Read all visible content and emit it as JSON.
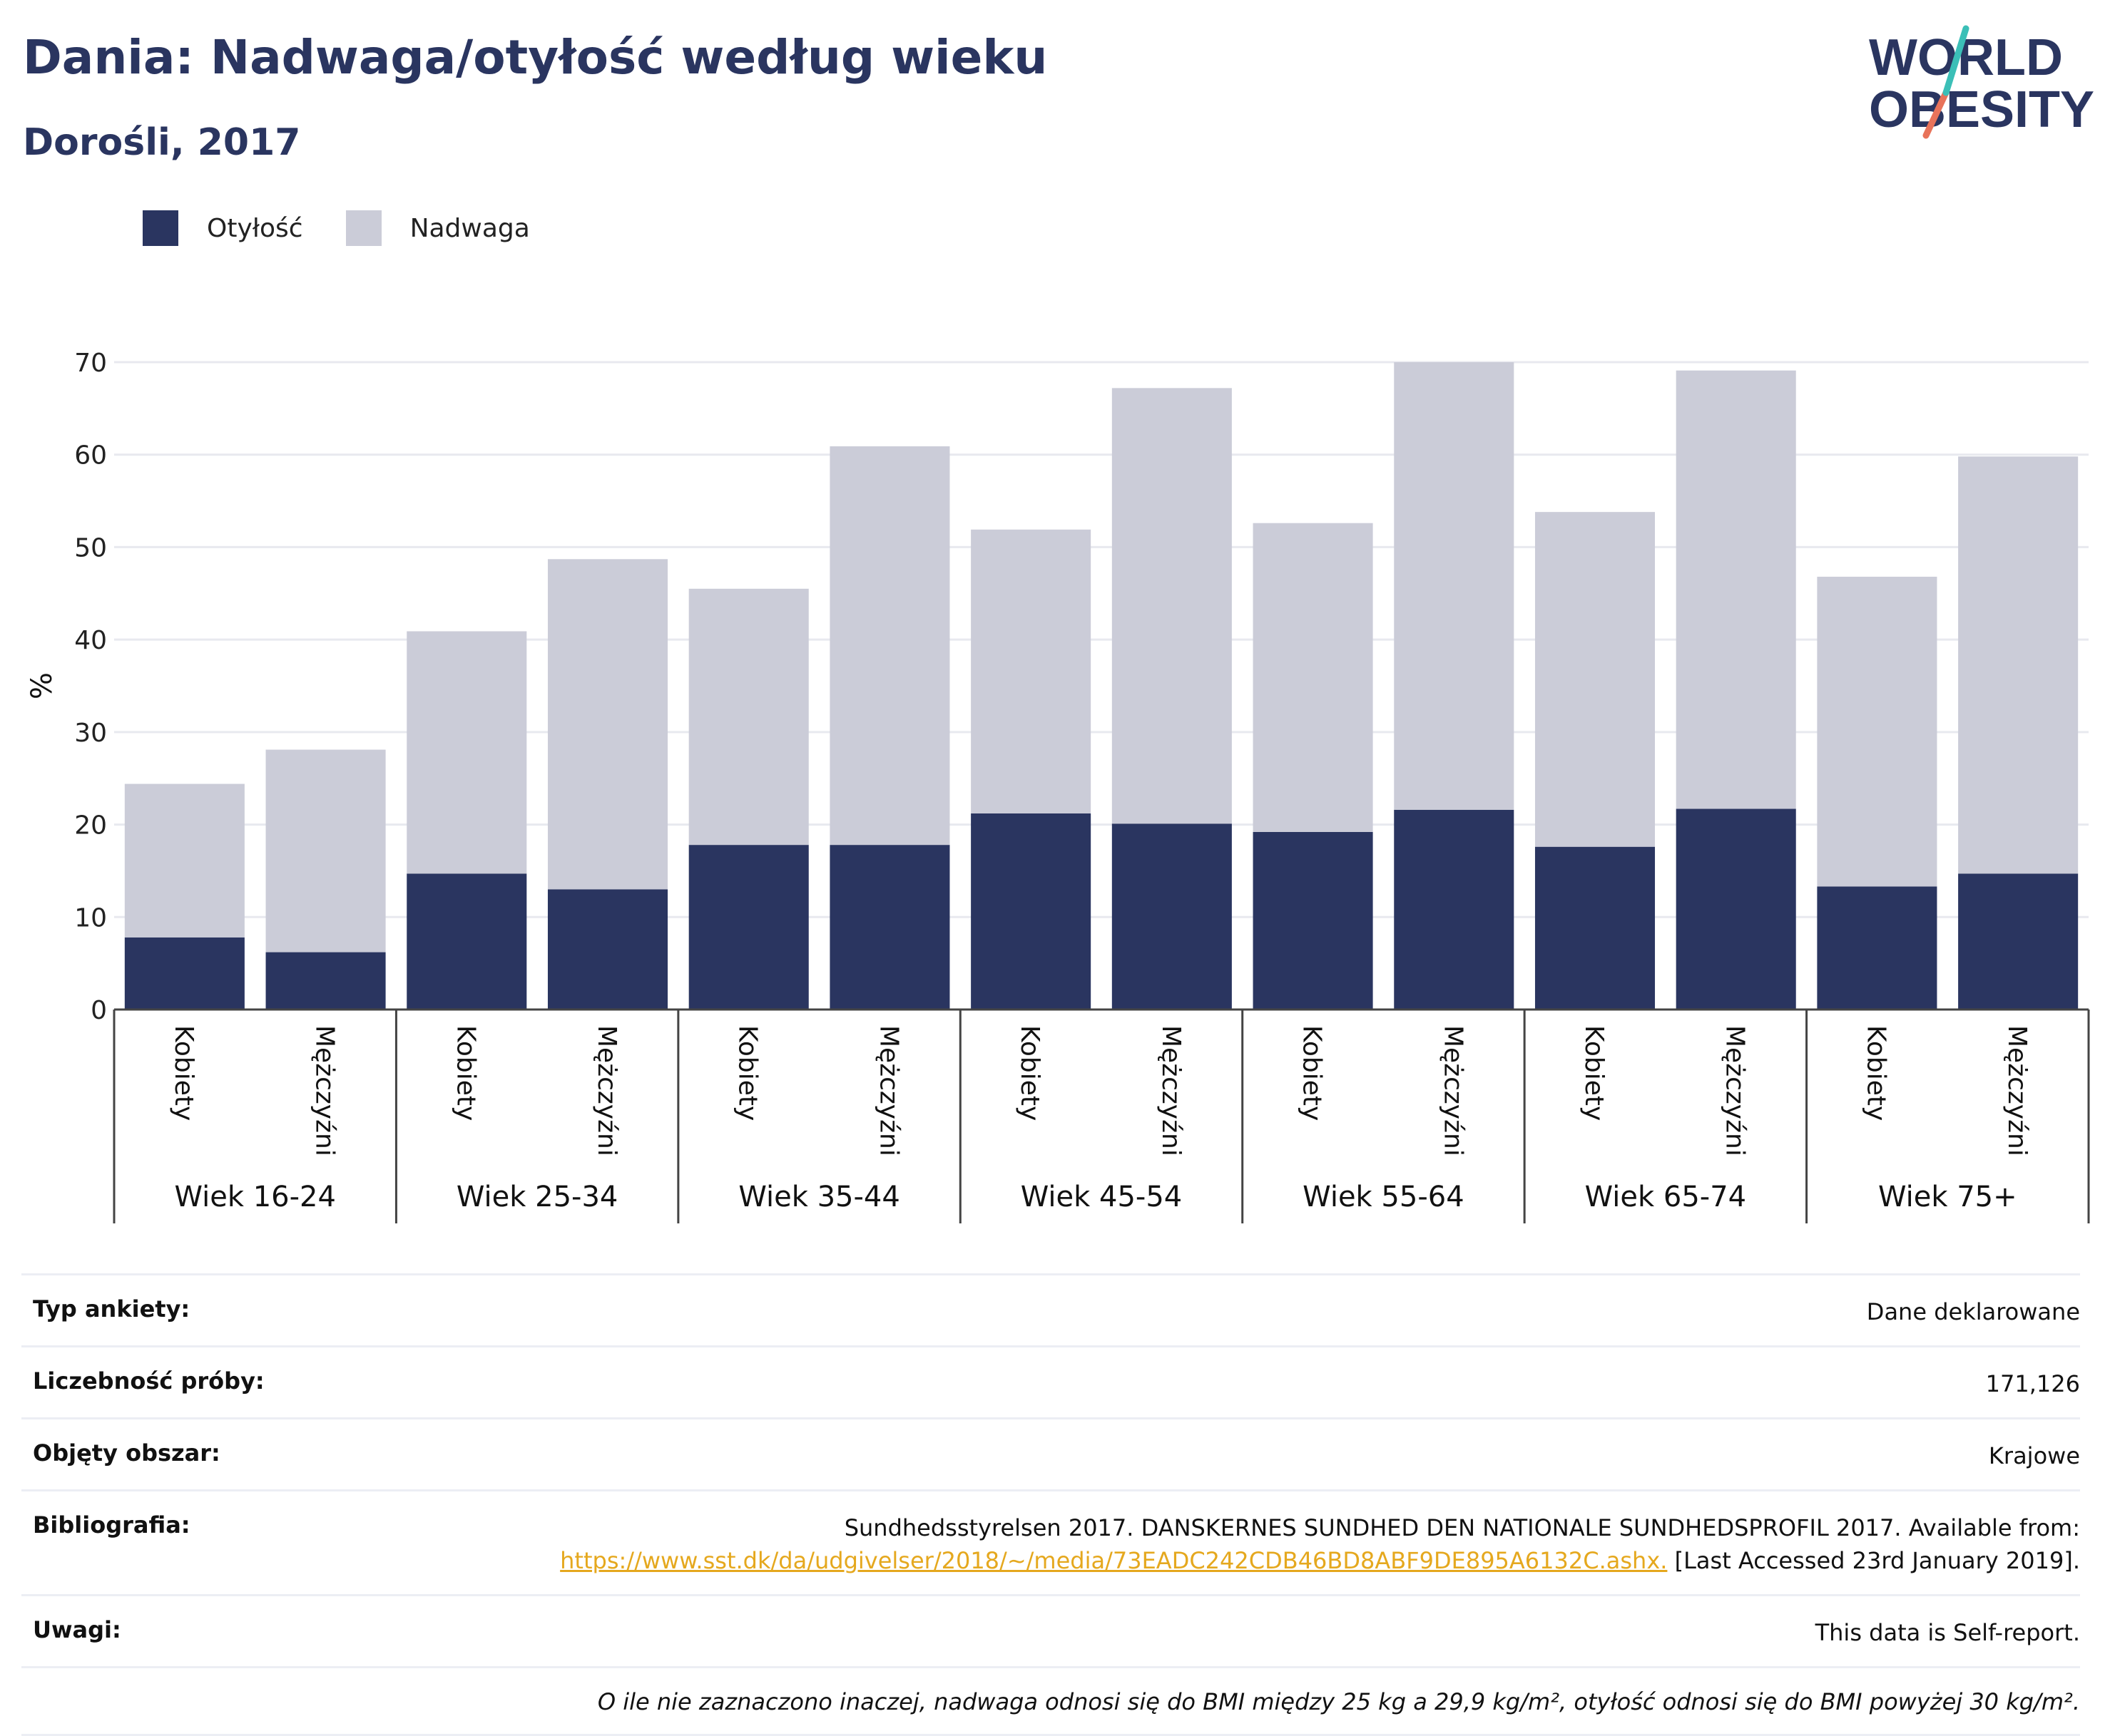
{
  "header": {
    "title": "Dania: Nadwaga/otyłość według wieku",
    "subtitle": "Dorośli, 2017"
  },
  "logo": {
    "line1": "WORLD",
    "line2": "OBESITY"
  },
  "colors": {
    "obesity": "#2a3560",
    "overweight": "#cbccd8",
    "grid": "#e8e9ef",
    "link": "#e5a81e"
  },
  "legend": {
    "obesity": "Otyłość",
    "overweight": "Nadwaga"
  },
  "chart_data": {
    "type": "bar",
    "stacked": true,
    "ylabel": "%",
    "ylim": [
      0,
      70
    ],
    "yticks": [
      0,
      10,
      20,
      30,
      40,
      50,
      60,
      70
    ],
    "grid": true,
    "groups": [
      "Wiek 16-24",
      "Wiek 25-34",
      "Wiek 35-44",
      "Wiek 45-54",
      "Wiek 55-64",
      "Wiek 65-74",
      "Wiek 75+"
    ],
    "subcategories": [
      "Kobiety",
      "Mężczyźni"
    ],
    "series": [
      {
        "name": "Otyłość",
        "values": [
          7.8,
          6.2,
          14.7,
          13.0,
          17.8,
          17.8,
          21.2,
          20.1,
          19.2,
          21.6,
          17.6,
          21.7,
          13.3,
          14.7
        ]
      },
      {
        "name": "Nadwaga",
        "values": [
          16.6,
          21.9,
          26.2,
          35.7,
          27.7,
          43.1,
          30.7,
          47.1,
          33.4,
          48.4,
          36.2,
          47.4,
          33.5,
          45.1
        ]
      }
    ]
  },
  "info": {
    "survey_type": {
      "label": "Typ ankiety:",
      "value": "Dane deklarowane"
    },
    "sample_size": {
      "label": "Liczebność próby:",
      "value": "171,126"
    },
    "area": {
      "label": "Objęty obszar:",
      "value": "Krajowe"
    },
    "bibliography": {
      "label": "Bibliografia:",
      "text": "Sundhedsstyrelsen 2017. DANSKERNES SUNDHED DEN NATIONALE SUNDHEDSPROFIL 2017. Available from:",
      "link": "https://www.sst.dk/da/udgivelser/2018/~/media/73EADC242CDB46BD8ABF9DE895A6132C.ashx.",
      "suffix": " [Last Accessed 23rd January 2019]."
    },
    "notes": {
      "label": "Uwagi:",
      "value": "This data is Self-report."
    },
    "footnote": "O ile nie zaznaczono inaczej, nadwaga odnosi się do BMI między 25 kg a 29,9 kg/m², otyłość odnosi się do BMI powyżej 30 kg/m²."
  }
}
